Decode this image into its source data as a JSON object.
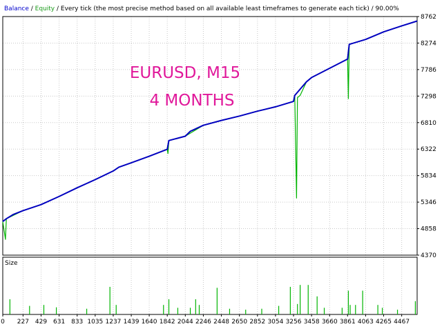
{
  "header": {
    "balance_label": "Balance",
    "sep1": " / ",
    "equity_label": "Equity",
    "sep2": " / ",
    "description": "Every tick (the most precise method based on all available least timeframes to generate each tick)",
    "sep3": " / ",
    "quality": "90.00%"
  },
  "overlay": {
    "line1": "EURUSD, M15",
    "line2": "4 MONTHS",
    "color": "#e0189a"
  },
  "colors": {
    "balance": "#0000bf",
    "equity": "#00b400",
    "size": "#00b400",
    "grid": "#c8c8c8",
    "axis": "#000000"
  },
  "chart_data": [
    {
      "type": "line",
      "name": "main",
      "title": "",
      "xlabel": "",
      "ylabel": "",
      "xlim": [
        0,
        4640
      ],
      "ylim": [
        4370,
        8762
      ],
      "yticks": [
        4370,
        4858,
        5346,
        5834,
        6322,
        6810,
        7298,
        7786,
        8274,
        8762
      ],
      "xticks": [
        0,
        227,
        429,
        631,
        833,
        1035,
        1237,
        1439,
        1640,
        1842,
        2044,
        2246,
        2448,
        2650,
        2852,
        3054,
        3256,
        3458,
        3660,
        3861,
        4063,
        4265,
        4467
      ],
      "grid": true,
      "series": [
        {
          "name": "Balance",
          "x": [
            0,
            40,
            120,
            227,
            429,
            631,
            833,
            1035,
            1237,
            1300,
            1439,
            1640,
            1842,
            1860,
            2044,
            2100,
            2246,
            2448,
            2650,
            2852,
            3054,
            3256,
            3270,
            3400,
            3458,
            3660,
            3861,
            3880,
            4063,
            4265,
            4467,
            4640
          ],
          "y": [
            4990,
            5040,
            5120,
            5190,
            5300,
            5450,
            5610,
            5760,
            5920,
            5990,
            6070,
            6190,
            6320,
            6480,
            6560,
            6650,
            6760,
            6850,
            6930,
            7020,
            7100,
            7200,
            7310,
            7560,
            7640,
            7810,
            7980,
            8250,
            8340,
            8480,
            8590,
            8680
          ]
        },
        {
          "name": "Equity",
          "x": [
            0,
            30,
            40,
            227,
            429,
            631,
            833,
            1035,
            1237,
            1300,
            1439,
            1640,
            1842,
            1850,
            1860,
            2044,
            2246,
            2448,
            2650,
            2852,
            3054,
            3256,
            3270,
            3290,
            3300,
            3330,
            3400,
            3458,
            3660,
            3861,
            3870,
            3880,
            4063,
            4265,
            4467,
            4640
          ],
          "y": [
            4990,
            4660,
            5040,
            5190,
            5300,
            5450,
            5610,
            5760,
            5920,
            5990,
            6070,
            6190,
            6320,
            6240,
            6480,
            6560,
            6760,
            6850,
            6930,
            7020,
            7100,
            7200,
            7310,
            5420,
            7270,
            7310,
            7560,
            7640,
            7810,
            7980,
            7250,
            8250,
            8340,
            8480,
            8590,
            8680
          ]
        }
      ]
    },
    {
      "type": "bar",
      "name": "size",
      "title": "",
      "panel_label": "Size",
      "xlim": [
        0,
        4640
      ],
      "ylim": [
        0,
        1
      ],
      "x": [
        80,
        300,
        460,
        600,
        940,
        1200,
        1270,
        1800,
        1860,
        1960,
        2100,
        2160,
        2200,
        2400,
        2540,
        2720,
        2900,
        3090,
        3220,
        3300,
        3330,
        3420,
        3520,
        3600,
        3800,
        3870,
        3890,
        3950,
        4030,
        4200,
        4250,
        4420,
        4620
      ],
      "values": [
        0.32,
        0.18,
        0.2,
        0.15,
        0.12,
        0.58,
        0.2,
        0.2,
        0.32,
        0.14,
        0.14,
        0.32,
        0.2,
        0.56,
        0.12,
        0.1,
        0.12,
        0.18,
        0.58,
        0.22,
        0.62,
        0.62,
        0.38,
        0.14,
        0.14,
        0.5,
        0.2,
        0.2,
        0.5,
        0.2,
        0.14,
        0.1,
        0.28
      ]
    }
  ]
}
